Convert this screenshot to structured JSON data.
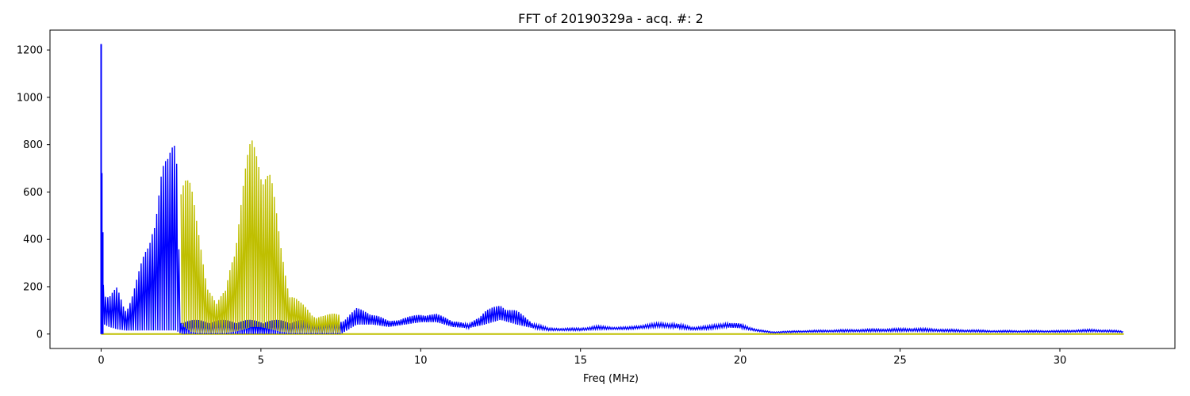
{
  "chart_data": {
    "type": "line",
    "title": "FFT of 20190329a - acq. #: 2",
    "xlabel": "Freq (MHz)",
    "ylabel": "",
    "xlim": [
      -1.6,
      33.6
    ],
    "ylim": [
      -61,
      1284
    ],
    "x_ticks": [
      0,
      5,
      10,
      15,
      20,
      25,
      30
    ],
    "y_ticks": [
      0,
      200,
      400,
      600,
      800,
      1000,
      1200
    ],
    "grid": false,
    "legend": "none",
    "colors": {
      "blue": "#0000ff",
      "olive": "#bfbf00",
      "axis": "#000000"
    },
    "series": [
      {
        "color": "#0000ff",
        "x_range": [
          0,
          32
        ],
        "spike_x": [
          0.0,
          0.02,
          0.05
        ],
        "spike_y": [
          1225,
          680,
          430
        ],
        "envelope_x": [
          0.0,
          0.1,
          0.25,
          0.5,
          0.75,
          1.0,
          1.3,
          1.5,
          1.7,
          1.9,
          2.1,
          2.35,
          2.5,
          3.0,
          4.5,
          6.5,
          7.5,
          8.0,
          8.5,
          9.0,
          9.5,
          10.0,
          10.5,
          11.0,
          11.5,
          12.0,
          12.5,
          13.0,
          13.5,
          14.0,
          15.0,
          15.5,
          16.0,
          16.5,
          17.0,
          17.5,
          18.0,
          18.5,
          19.0,
          19.5,
          20.0,
          20.5,
          21.0,
          22.0,
          25.5,
          26.5,
          28.0,
          30.0,
          31.0,
          31.8,
          32.0
        ],
        "envelope_max": [
          390,
          180,
          160,
          200,
          110,
          190,
          320,
          400,
          610,
          745,
          740,
          870,
          60,
          60,
          60,
          60,
          60,
          110,
          90,
          55,
          70,
          85,
          85,
          60,
          40,
          100,
          125,
          100,
          50,
          25,
          25,
          35,
          30,
          30,
          40,
          48,
          45,
          30,
          35,
          48,
          45,
          20,
          10,
          15,
          25,
          20,
          15,
          15,
          20,
          15,
          12
        ],
        "envelope_min": [
          60,
          40,
          30,
          20,
          15,
          15,
          15,
          15,
          15,
          15,
          15,
          15,
          0,
          0,
          0,
          0,
          0,
          40,
          40,
          30,
          40,
          50,
          50,
          30,
          25,
          40,
          60,
          40,
          25,
          15,
          15,
          20,
          20,
          20,
          25,
          30,
          25,
          18,
          20,
          28,
          25,
          12,
          5,
          8,
          12,
          10,
          8,
          8,
          10,
          8,
          6
        ]
      },
      {
        "color": "#bfbf00",
        "x_range": [
          2.5,
          7.5
        ],
        "baseline_x_range": [
          0,
          32
        ],
        "baseline_y": 0,
        "envelope_x": [
          2.5,
          2.6,
          2.8,
          3.0,
          3.3,
          3.6,
          3.9,
          4.2,
          4.5,
          4.7,
          5.0,
          5.3,
          5.6,
          5.9,
          6.2,
          6.6,
          7.0,
          7.5
        ],
        "envelope_max": [
          770,
          760,
          650,
          470,
          260,
          130,
          190,
          450,
          700,
          835,
          830,
          700,
          400,
          200,
          140,
          90,
          80,
          95
        ],
        "envelope_min": [
          50,
          30,
          10,
          5,
          5,
          5,
          5,
          10,
          20,
          30,
          30,
          20,
          10,
          5,
          5,
          5,
          5,
          5
        ]
      }
    ]
  }
}
